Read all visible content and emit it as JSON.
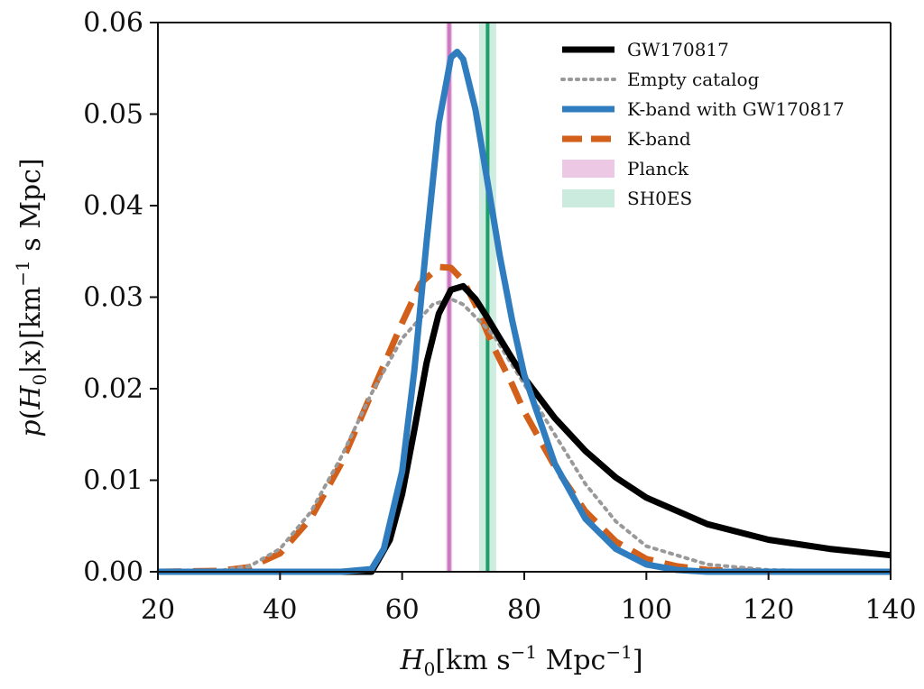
{
  "chart_data": {
    "type": "line",
    "xlabel": "H_0[km s^-1 Mpc^-1]",
    "ylabel": "p(H_0|x)[km^-1 s Mpc]",
    "xlim": [
      20,
      140
    ],
    "ylim": [
      0,
      0.06
    ],
    "xticks": [
      20,
      40,
      60,
      80,
      100,
      120,
      140
    ],
    "yticks": [
      0.0,
      0.01,
      0.02,
      0.03,
      0.04,
      0.05,
      0.06
    ],
    "grid": false,
    "legend_position": "top-right",
    "series": [
      {
        "name": "GW170817",
        "color": "#000000",
        "style": "solid",
        "x": [
          20,
          40,
          50,
          55,
          58,
          60,
          62,
          64,
          66,
          68,
          70,
          72,
          74,
          76,
          78,
          80,
          85,
          90,
          95,
          100,
          110,
          120,
          130,
          140
        ],
        "y": [
          0.0,
          0.0,
          0.0,
          0.0,
          0.0035,
          0.0085,
          0.0155,
          0.0228,
          0.0282,
          0.0308,
          0.0312,
          0.0298,
          0.0277,
          0.0255,
          0.0233,
          0.0212,
          0.0168,
          0.0132,
          0.0103,
          0.0081,
          0.0052,
          0.0035,
          0.0025,
          0.0018
        ]
      },
      {
        "name": "Empty catalog",
        "color": "#999999",
        "style": "dotted",
        "x": [
          20,
          30,
          35,
          40,
          45,
          50,
          55,
          60,
          65,
          68,
          70,
          75,
          80,
          85,
          90,
          95,
          100,
          110,
          120,
          140
        ],
        "y": [
          0.0,
          0.0001,
          0.0006,
          0.0025,
          0.0065,
          0.0125,
          0.0195,
          0.0255,
          0.0292,
          0.0298,
          0.0292,
          0.0258,
          0.0205,
          0.015,
          0.0096,
          0.0055,
          0.0028,
          0.0008,
          0.0002,
          0.0
        ]
      },
      {
        "name": "K-band with GW170817",
        "color": "#2f7dbf",
        "style": "solid",
        "x": [
          20,
          50,
          55,
          57,
          60,
          62,
          64,
          66,
          68,
          69,
          70,
          72,
          74,
          76,
          78,
          80,
          85,
          90,
          95,
          100,
          105,
          110,
          140
        ],
        "y": [
          0.0,
          0.0,
          0.0003,
          0.0025,
          0.011,
          0.022,
          0.036,
          0.049,
          0.0562,
          0.0568,
          0.056,
          0.0505,
          0.0425,
          0.0345,
          0.0275,
          0.0215,
          0.0118,
          0.0058,
          0.0025,
          0.0008,
          0.0002,
          0.0,
          0.0
        ]
      },
      {
        "name": "K-band",
        "color": "#d2601a",
        "style": "dashed",
        "x": [
          20,
          30,
          35,
          40,
          45,
          50,
          55,
          60,
          63,
          66,
          68,
          70,
          72,
          75,
          78,
          80,
          85,
          90,
          95,
          100,
          105,
          110,
          120,
          140
        ],
        "y": [
          0.0,
          0.0001,
          0.0005,
          0.002,
          0.0058,
          0.0118,
          0.0195,
          0.0272,
          0.0315,
          0.0333,
          0.0332,
          0.0318,
          0.0292,
          0.0245,
          0.0205,
          0.0175,
          0.0115,
          0.0066,
          0.0033,
          0.0014,
          0.0006,
          0.0002,
          0.0,
          0.0
        ]
      }
    ],
    "bands": [
      {
        "name": "Planck",
        "color": "#e0a3d4",
        "line_color": "#cc79c0",
        "center": 67.7,
        "low": 67.2,
        "high": 68.2
      },
      {
        "name": "SH0ES",
        "color": "#a8ddc8",
        "line_color": "#1e9e68",
        "center": 74.0,
        "low": 72.6,
        "high": 75.4
      }
    ]
  }
}
